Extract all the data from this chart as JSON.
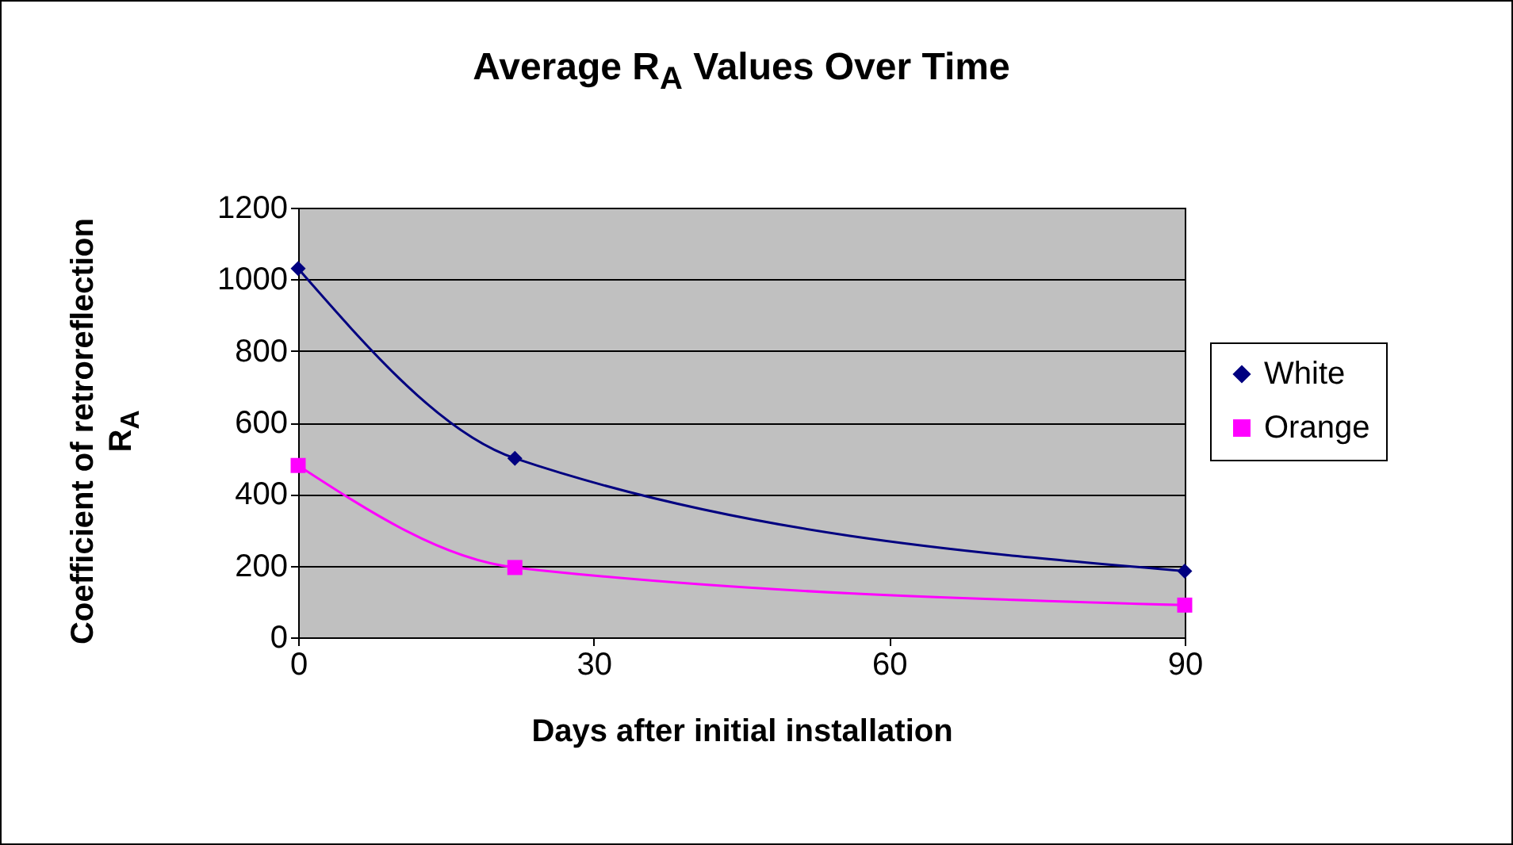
{
  "chart_data": {
    "type": "line",
    "title": "Average R$_{A}$ Values Over Time",
    "xlabel": "Days after initial installation",
    "ylabel": "Coefficient of retroreflection R$_{A}$",
    "x": [
      0,
      22,
      90
    ],
    "series": [
      {
        "name": "White",
        "color": "#000080",
        "marker": "diamond",
        "values": [
          1030,
          500,
          185
        ]
      },
      {
        "name": "Orange",
        "color": "#ff00ff",
        "marker": "square",
        "values": [
          480,
          195,
          90
        ]
      }
    ],
    "xlim": [
      0,
      90
    ],
    "xticks": [
      0,
      30,
      60,
      90
    ],
    "ylim": [
      0,
      1200
    ],
    "yticks": [
      0,
      200,
      400,
      600,
      800,
      1000,
      1200
    ],
    "grid": "y",
    "legend": "right",
    "line_style": "solid"
  }
}
